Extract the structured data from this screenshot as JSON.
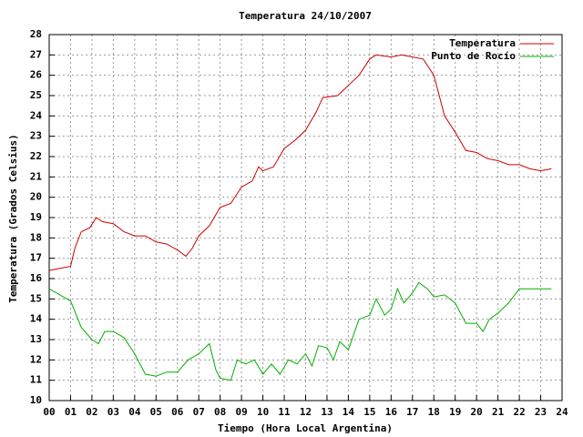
{
  "chart_data": {
    "type": "line",
    "title": "Temperatura 24/10/2007",
    "x_label": "Tiempo (Hora Local Argentina)",
    "y_label": "Temperatura (Grados Celsius)",
    "xlim": [
      0,
      24
    ],
    "xticks": [
      {
        "value": 0,
        "label": "00"
      },
      {
        "value": 1,
        "label": "01"
      },
      {
        "value": 2,
        "label": "02"
      },
      {
        "value": 3,
        "label": "03"
      },
      {
        "value": 4,
        "label": "04"
      },
      {
        "value": 5,
        "label": "05"
      },
      {
        "value": 6,
        "label": "06"
      },
      {
        "value": 7,
        "label": "07"
      },
      {
        "value": 8,
        "label": "08"
      },
      {
        "value": 9,
        "label": "09"
      },
      10,
      11,
      12,
      13,
      14,
      15,
      16,
      17,
      18,
      19,
      20,
      21,
      22,
      23,
      24
    ],
    "ylim": [
      10,
      28
    ],
    "yticks": [
      10,
      11,
      12,
      13,
      14,
      15,
      16,
      17,
      18,
      19,
      20,
      21,
      22,
      23,
      24,
      25,
      26,
      27,
      28
    ],
    "grid": true,
    "legend": "top-right",
    "series": [
      {
        "name": "Temperatura",
        "color": "#cc0000",
        "x": [
          0,
          0.5,
          1.0,
          1.2,
          1.5,
          1.9,
          2.2,
          2.5,
          3.0,
          3.5,
          4.0,
          4.5,
          5.0,
          5.5,
          6.0,
          6.4,
          6.7,
          7.0,
          7.5,
          8.0,
          8.5,
          9.0,
          9.5,
          9.8,
          10.0,
          10.5,
          11.0,
          11.5,
          12.0,
          12.5,
          12.8,
          13.5,
          14.0,
          14.5,
          15.0,
          15.3,
          16.0,
          16.5,
          17.0,
          17.5,
          18.0,
          18.5,
          19.0,
          19.5,
          20.0,
          20.5,
          21.0,
          21.5,
          22.0,
          22.5,
          23.0,
          23.5
        ],
        "values": [
          16.4,
          16.5,
          16.6,
          17.5,
          18.3,
          18.5,
          19.0,
          18.8,
          18.7,
          18.3,
          18.1,
          18.1,
          17.8,
          17.7,
          17.4,
          17.1,
          17.5,
          18.1,
          18.6,
          19.5,
          19.7,
          20.5,
          20.8,
          21.5,
          21.3,
          21.5,
          22.4,
          22.8,
          23.3,
          24.2,
          24.9,
          25.0,
          25.5,
          26.0,
          26.8,
          27.0,
          26.9,
          27.0,
          26.9,
          26.8,
          26.0,
          24.0,
          23.2,
          22.3,
          22.2,
          21.9,
          21.8,
          21.6,
          21.6,
          21.4,
          21.3,
          21.4
        ]
      },
      {
        "name": "Punto de Rocío",
        "color": "#00b000",
        "x": [
          0,
          0.5,
          1.0,
          1.5,
          2.0,
          2.3,
          2.6,
          3.0,
          3.5,
          4.0,
          4.5,
          5.0,
          5.5,
          6.0,
          6.5,
          7.0,
          7.5,
          7.8,
          8.0,
          8.5,
          8.8,
          9.2,
          9.6,
          10.0,
          10.4,
          10.8,
          11.2,
          11.6,
          12.0,
          12.3,
          12.6,
          13.0,
          13.3,
          13.6,
          14.0,
          14.5,
          15.0,
          15.3,
          15.7,
          16.0,
          16.3,
          16.6,
          17.0,
          17.3,
          17.7,
          18.0,
          18.5,
          19.0,
          19.5,
          20.0,
          20.3,
          20.6,
          21.0,
          21.5,
          22.0,
          22.5,
          23.0,
          23.5
        ],
        "values": [
          15.5,
          15.2,
          14.9,
          13.6,
          13.0,
          12.8,
          13.4,
          13.4,
          13.1,
          12.3,
          11.3,
          11.2,
          11.4,
          11.4,
          12.0,
          12.3,
          12.8,
          11.5,
          11.1,
          11.0,
          12.0,
          11.8,
          12.0,
          11.3,
          11.8,
          11.3,
          12.0,
          11.8,
          12.3,
          11.7,
          12.7,
          12.6,
          12.0,
          12.9,
          12.5,
          14.0,
          14.2,
          15.0,
          14.2,
          14.5,
          15.5,
          14.8,
          15.3,
          15.8,
          15.5,
          15.1,
          15.2,
          14.8,
          13.8,
          13.8,
          13.4,
          14.0,
          14.3,
          14.8,
          15.5,
          15.5,
          15.5,
          15.5
        ]
      }
    ]
  }
}
